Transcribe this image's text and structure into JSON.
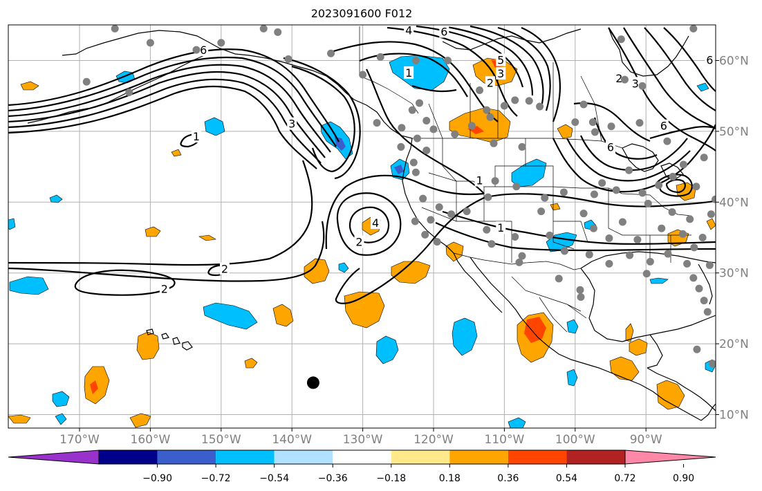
{
  "title": "2023091600 F012",
  "colors": {
    "grid": "#b0b0b0",
    "coast": "#000000",
    "station": "#808080",
    "contour": "#000000",
    "neg_light": "#00bfff",
    "neg_mid": "#3a5fcd",
    "pos_light": "#ffa500",
    "pos_mid": "#ff4500"
  },
  "map": {
    "lon_ticks": [
      {
        "lon": -170,
        "label": "170°W"
      },
      {
        "lon": -160,
        "label": "160°W"
      },
      {
        "lon": -150,
        "label": "150°W"
      },
      {
        "lon": -140,
        "label": "140°W"
      },
      {
        "lon": -130,
        "label": "130°W"
      },
      {
        "lon": -120,
        "label": "120°W"
      },
      {
        "lon": -110,
        "label": "110°W"
      },
      {
        "lon": -100,
        "label": "100°W"
      },
      {
        "lon": -90,
        "label": "90°W"
      }
    ],
    "lat_ticks": [
      {
        "lat": 60,
        "label": "60°N"
      },
      {
        "lat": 50,
        "label": "50°N"
      },
      {
        "lat": 40,
        "label": "40°N"
      },
      {
        "lat": 30,
        "label": "30°N"
      },
      {
        "lat": 20,
        "label": "20°N"
      },
      {
        "lat": 10,
        "label": "10°N"
      }
    ],
    "contour_labels": [
      {
        "text": "1",
        "lon": -153.5,
        "lat": 49.2
      },
      {
        "text": "1",
        "lon": -123.5,
        "lat": 58.2
      },
      {
        "text": "1",
        "lon": -113.5,
        "lat": 43.0
      },
      {
        "text": "1",
        "lon": -110.5,
        "lat": 36.3
      },
      {
        "text": "2",
        "lon": -149.5,
        "lat": 30.5
      },
      {
        "text": "2",
        "lon": -158.0,
        "lat": 27.7
      },
      {
        "text": "2",
        "lon": -130.5,
        "lat": 34.3
      },
      {
        "text": "2",
        "lon": -112.0,
        "lat": 56.8
      },
      {
        "text": "2",
        "lon": -93.8,
        "lat": 57.4
      },
      {
        "text": "3",
        "lon": -140.0,
        "lat": 51.0
      },
      {
        "text": "3",
        "lon": -110.5,
        "lat": 58.1
      },
      {
        "text": "3",
        "lon": -91.5,
        "lat": 56.7
      },
      {
        "text": "4",
        "lon": -123.5,
        "lat": 64.2
      },
      {
        "text": "4",
        "lon": -128.2,
        "lat": 37.0
      },
      {
        "text": "5",
        "lon": -110.5,
        "lat": 60.0
      },
      {
        "text": "6",
        "lon": -152.5,
        "lat": 61.4
      },
      {
        "text": "6",
        "lon": -118.5,
        "lat": 64.0
      },
      {
        "text": "6",
        "lon": -95.0,
        "lat": 47.7
      },
      {
        "text": "6",
        "lon": -87.5,
        "lat": 50.7
      },
      {
        "text": "6",
        "lon": -81.0,
        "lat": 60.0
      }
    ],
    "black_marker": {
      "lon": -137,
      "lat": 14.5
    }
  },
  "colorbar": {
    "colors": [
      "#9932cc",
      "#00008b",
      "#3a5fcd",
      "#00bfff",
      "#b0e2ff",
      "#ffffff",
      "#ffe98a",
      "#ffa500",
      "#ff4500",
      "#b22222",
      "#ff88a8"
    ],
    "ticks": [
      "−0.90",
      "−0.72",
      "−0.54",
      "−0.36",
      "−0.18",
      "0.18",
      "0.36",
      "0.54",
      "0.72",
      "0.90"
    ]
  }
}
